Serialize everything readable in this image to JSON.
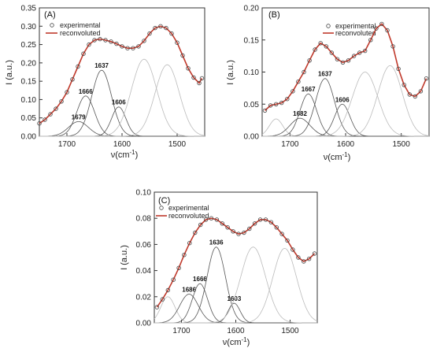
{
  "chart_data": [
    {
      "panel_label": "(A)",
      "type": "line",
      "xlabel": "ν(cm",
      "xlabel_sup": "-1",
      "xlabel_close": ")",
      "ylabel": "I (a.u.)",
      "xlim": [
        1750,
        1450
      ],
      "ylim": [
        0,
        0.35
      ],
      "x_ticks": [
        "1700",
        "1600",
        "1500"
      ],
      "y_ticks": [
        "0.00",
        "0.05",
        "0.10",
        "0.15",
        "0.20",
        "0.25",
        "0.30",
        "0.35"
      ],
      "legend": {
        "placement": "top-left",
        "experimental": "experimental",
        "reconvoluted": "reconvoluted"
      },
      "series": [
        {
          "name": "experimental",
          "style": "circles",
          "color": "#444444",
          "x": [
            1750,
            1740,
            1730,
            1720,
            1710,
            1700,
            1690,
            1680,
            1670,
            1660,
            1650,
            1640,
            1630,
            1620,
            1610,
            1600,
            1590,
            1580,
            1570,
            1560,
            1550,
            1540,
            1530,
            1520,
            1510,
            1500,
            1490,
            1480,
            1470,
            1460,
            1455
          ],
          "y": [
            0.035,
            0.045,
            0.06,
            0.075,
            0.095,
            0.12,
            0.155,
            0.19,
            0.225,
            0.25,
            0.262,
            0.265,
            0.262,
            0.258,
            0.252,
            0.245,
            0.24,
            0.24,
            0.245,
            0.26,
            0.28,
            0.295,
            0.3,
            0.295,
            0.28,
            0.255,
            0.22,
            0.185,
            0.16,
            0.145,
            0.158
          ]
        },
        {
          "name": "reconvoluted",
          "style": "line",
          "color": "#c0392b",
          "x": [
            1750,
            1740,
            1730,
            1720,
            1710,
            1700,
            1690,
            1680,
            1670,
            1660,
            1650,
            1640,
            1630,
            1620,
            1610,
            1600,
            1590,
            1580,
            1570,
            1560,
            1550,
            1540,
            1530,
            1520,
            1510,
            1500,
            1490,
            1480,
            1470,
            1460,
            1455
          ],
          "y": [
            0.035,
            0.045,
            0.06,
            0.075,
            0.095,
            0.12,
            0.155,
            0.19,
            0.225,
            0.25,
            0.262,
            0.265,
            0.262,
            0.258,
            0.252,
            0.245,
            0.24,
            0.24,
            0.245,
            0.26,
            0.28,
            0.295,
            0.3,
            0.295,
            0.28,
            0.255,
            0.22,
            0.185,
            0.16,
            0.145,
            0.158
          ]
        }
      ],
      "components": [
        {
          "center": 1679,
          "amplitude": 0.04,
          "width": 18,
          "label": "1679",
          "color": "#555555"
        },
        {
          "center": 1666,
          "amplitude": 0.11,
          "width": 16,
          "label": "1666",
          "color": "#555555"
        },
        {
          "center": 1637,
          "amplitude": 0.18,
          "width": 18,
          "label": "1637",
          "color": "#555555"
        },
        {
          "center": 1606,
          "amplitude": 0.08,
          "width": 13,
          "label": "1606",
          "color": "#555555"
        },
        {
          "center": 1560,
          "amplitude": 0.21,
          "width": 23,
          "label": "",
          "color": "#bbbbbb"
        },
        {
          "center": 1518,
          "amplitude": 0.195,
          "width": 22,
          "label": "",
          "color": "#bbbbbb"
        }
      ]
    },
    {
      "panel_label": "(B)",
      "type": "line",
      "xlabel": "ν(cm",
      "xlabel_sup": "-1",
      "xlabel_close": ")",
      "ylabel": "I (a.u.)",
      "xlim": [
        1750,
        1450
      ],
      "ylim": [
        0,
        0.2
      ],
      "x_ticks": [
        "1700",
        "1600",
        "1500"
      ],
      "y_ticks": [
        "0.00",
        "0.05",
        "0.10",
        "0.15",
        "0.20"
      ],
      "legend": {
        "placement": "top-center",
        "experimental": "experimental",
        "reconvoluted": "reconvoluted"
      },
      "series": [
        {
          "name": "experimental",
          "style": "circles",
          "color": "#444444",
          "x": [
            1745,
            1735,
            1725,
            1715,
            1705,
            1695,
            1685,
            1675,
            1665,
            1655,
            1645,
            1635,
            1625,
            1615,
            1605,
            1595,
            1585,
            1575,
            1565,
            1555,
            1545,
            1535,
            1525,
            1515,
            1505,
            1495,
            1485,
            1475,
            1465,
            1455
          ],
          "y": [
            0.04,
            0.048,
            0.05,
            0.052,
            0.058,
            0.07,
            0.085,
            0.1,
            0.118,
            0.135,
            0.145,
            0.14,
            0.13,
            0.12,
            0.115,
            0.118,
            0.125,
            0.13,
            0.133,
            0.15,
            0.168,
            0.175,
            0.165,
            0.14,
            0.105,
            0.08,
            0.065,
            0.062,
            0.07,
            0.09
          ]
        },
        {
          "name": "reconvoluted",
          "style": "line",
          "color": "#c0392b",
          "x": [
            1745,
            1735,
            1725,
            1715,
            1705,
            1695,
            1685,
            1675,
            1665,
            1655,
            1645,
            1635,
            1625,
            1615,
            1605,
            1595,
            1585,
            1575,
            1565,
            1555,
            1545,
            1535,
            1525,
            1515,
            1505,
            1495,
            1485,
            1475,
            1465,
            1455
          ],
          "y": [
            0.04,
            0.048,
            0.05,
            0.052,
            0.058,
            0.07,
            0.085,
            0.1,
            0.118,
            0.135,
            0.145,
            0.14,
            0.13,
            0.12,
            0.115,
            0.118,
            0.125,
            0.13,
            0.133,
            0.15,
            0.168,
            0.175,
            0.165,
            0.14,
            0.105,
            0.08,
            0.065,
            0.062,
            0.07,
            0.09
          ]
        }
      ],
      "components": [
        {
          "center": 1725,
          "amplitude": 0.027,
          "width": 12,
          "label": "",
          "color": "#bbbbbb"
        },
        {
          "center": 1682,
          "amplitude": 0.028,
          "width": 18,
          "label": "1682",
          "color": "#555555"
        },
        {
          "center": 1667,
          "amplitude": 0.066,
          "width": 15,
          "label": "1667",
          "color": "#555555"
        },
        {
          "center": 1637,
          "amplitude": 0.09,
          "width": 17,
          "label": "1637",
          "color": "#555555"
        },
        {
          "center": 1606,
          "amplitude": 0.05,
          "width": 14,
          "label": "1606",
          "color": "#555555"
        },
        {
          "center": 1565,
          "amplitude": 0.1,
          "width": 23,
          "label": "",
          "color": "#bbbbbb"
        },
        {
          "center": 1520,
          "amplitude": 0.11,
          "width": 22,
          "label": "",
          "color": "#bbbbbb"
        }
      ]
    },
    {
      "panel_label": "(C)",
      "type": "line",
      "xlabel": "ν(cm",
      "xlabel_sup": "-1",
      "xlabel_close": ")",
      "ylabel": "I (a.u.)",
      "xlim": [
        1750,
        1450
      ],
      "ylim": [
        0,
        0.1
      ],
      "x_ticks": [
        "1700",
        "1600",
        "1500"
      ],
      "y_ticks": [
        "0.00",
        "0.02",
        "0.04",
        "0.06",
        "0.08",
        "0.10"
      ],
      "legend": {
        "placement": "top-left",
        "experimental": "experimental",
        "reconvoluted": "reconvoluted"
      },
      "series": [
        {
          "name": "experimental",
          "style": "circles",
          "color": "#444444",
          "x": [
            1745,
            1735,
            1725,
            1715,
            1705,
            1695,
            1685,
            1675,
            1665,
            1655,
            1645,
            1635,
            1625,
            1615,
            1605,
            1595,
            1585,
            1575,
            1565,
            1555,
            1545,
            1535,
            1525,
            1515,
            1505,
            1495,
            1485,
            1475,
            1465,
            1455
          ],
          "y": [
            0.012,
            0.018,
            0.025,
            0.033,
            0.042,
            0.052,
            0.061,
            0.069,
            0.075,
            0.079,
            0.08,
            0.079,
            0.076,
            0.073,
            0.07,
            0.068,
            0.069,
            0.072,
            0.076,
            0.079,
            0.079,
            0.077,
            0.073,
            0.068,
            0.063,
            0.056,
            0.05,
            0.047,
            0.049,
            0.053
          ]
        },
        {
          "name": "reconvoluted",
          "style": "line",
          "color": "#c0392b",
          "x": [
            1745,
            1735,
            1725,
            1715,
            1705,
            1695,
            1685,
            1675,
            1665,
            1655,
            1645,
            1635,
            1625,
            1615,
            1605,
            1595,
            1585,
            1575,
            1565,
            1555,
            1545,
            1535,
            1525,
            1515,
            1505,
            1495,
            1485,
            1475,
            1465,
            1455
          ],
          "y": [
            0.012,
            0.018,
            0.025,
            0.033,
            0.042,
            0.052,
            0.061,
            0.069,
            0.075,
            0.079,
            0.08,
            0.079,
            0.076,
            0.073,
            0.07,
            0.068,
            0.069,
            0.072,
            0.076,
            0.079,
            0.079,
            0.077,
            0.073,
            0.068,
            0.063,
            0.056,
            0.05,
            0.047,
            0.049,
            0.053
          ]
        }
      ],
      "components": [
        {
          "center": 1725,
          "amplitude": 0.02,
          "width": 13,
          "label": "",
          "color": "#bbbbbb"
        },
        {
          "center": 1686,
          "amplitude": 0.022,
          "width": 17,
          "label": "1686",
          "color": "#555555"
        },
        {
          "center": 1666,
          "amplitude": 0.03,
          "width": 14,
          "label": "1666",
          "color": "#555555"
        },
        {
          "center": 1636,
          "amplitude": 0.058,
          "width": 17,
          "label": "1636",
          "color": "#555555"
        },
        {
          "center": 1603,
          "amplitude": 0.015,
          "width": 11,
          "label": "1603",
          "color": "#555555"
        },
        {
          "center": 1568,
          "amplitude": 0.058,
          "width": 23,
          "label": "",
          "color": "#bbbbbb"
        },
        {
          "center": 1510,
          "amplitude": 0.057,
          "width": 22,
          "label": "",
          "color": "#bbbbbb"
        }
      ]
    }
  ]
}
